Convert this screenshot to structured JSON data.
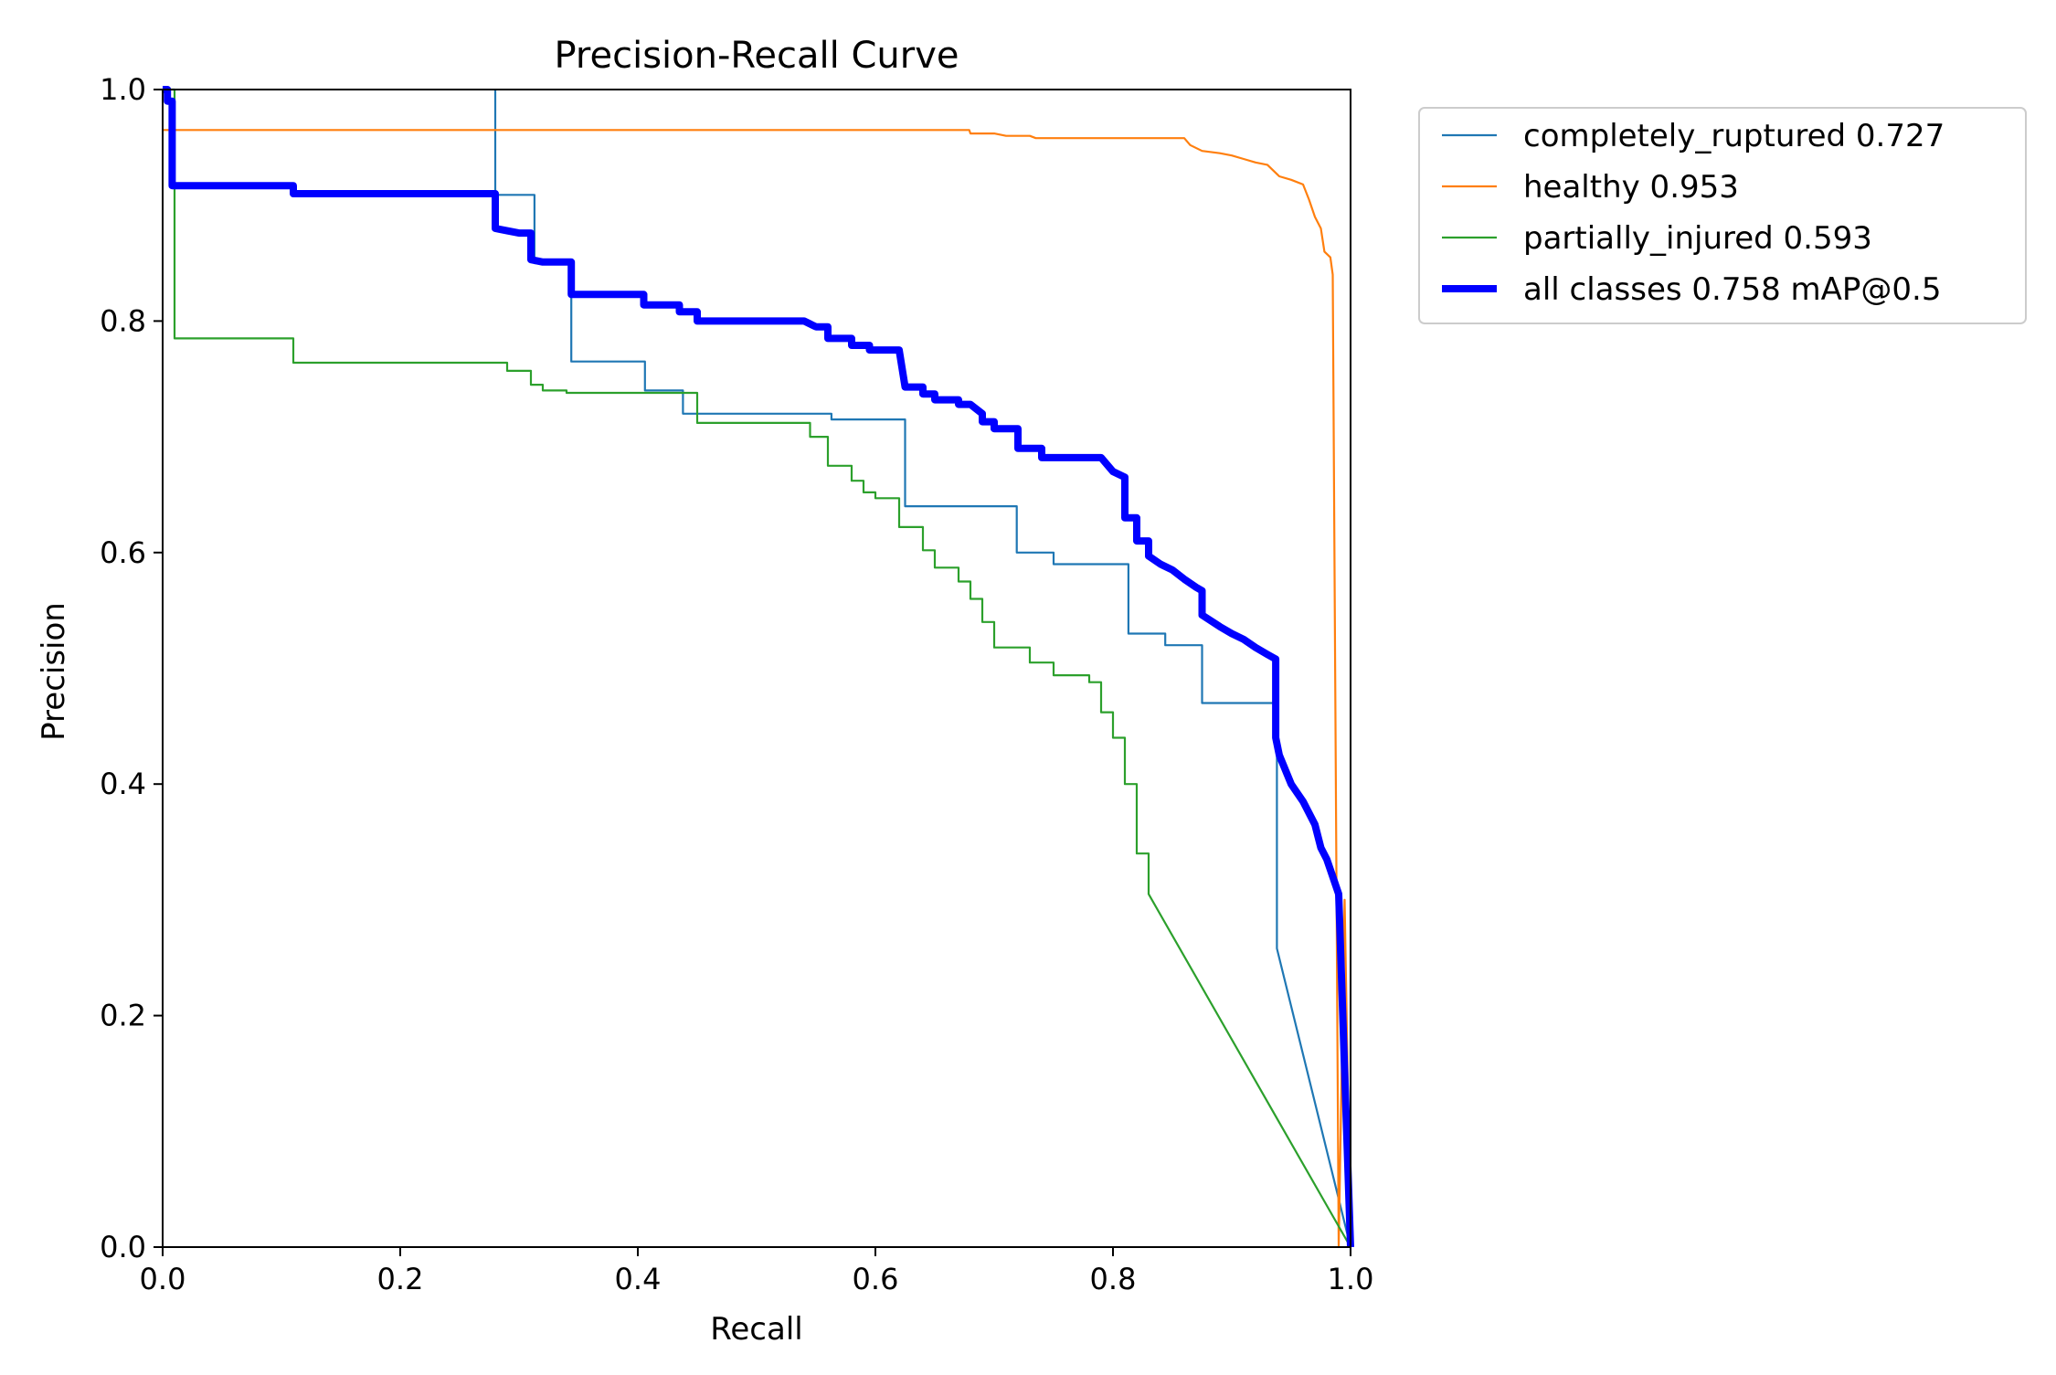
{
  "chart_data": {
    "type": "line",
    "title": "Precision-Recall Curve",
    "xlabel": "Recall",
    "ylabel": "Precision",
    "xlim": [
      0,
      1
    ],
    "ylim": [
      0,
      1
    ],
    "xticks": [
      "0.0",
      "0.2",
      "0.4",
      "0.6",
      "0.8",
      "1.0"
    ],
    "yticks": [
      "0.0",
      "0.2",
      "0.4",
      "0.6",
      "0.8",
      "1.0"
    ],
    "grid": false,
    "legend_position": "outside-top-right",
    "series": [
      {
        "name": "completely_ruptured 0.727",
        "color": "#1f77b4",
        "width": "thin",
        "points": [
          [
            0.28,
            1.0
          ],
          [
            0.28,
            0.909
          ],
          [
            0.313,
            0.909
          ],
          [
            0.313,
            0.85
          ],
          [
            0.344,
            0.85
          ],
          [
            0.344,
            0.765
          ],
          [
            0.406,
            0.765
          ],
          [
            0.406,
            0.74
          ],
          [
            0.438,
            0.74
          ],
          [
            0.438,
            0.72
          ],
          [
            0.563,
            0.72
          ],
          [
            0.563,
            0.715
          ],
          [
            0.625,
            0.715
          ],
          [
            0.625,
            0.64
          ],
          [
            0.719,
            0.64
          ],
          [
            0.719,
            0.6
          ],
          [
            0.75,
            0.6
          ],
          [
            0.75,
            0.59
          ],
          [
            0.813,
            0.59
          ],
          [
            0.813,
            0.53
          ],
          [
            0.844,
            0.53
          ],
          [
            0.844,
            0.52
          ],
          [
            0.875,
            0.52
          ],
          [
            0.875,
            0.47
          ],
          [
            0.938,
            0.47
          ],
          [
            0.938,
            0.258
          ],
          [
            1.0,
            0.0
          ]
        ]
      },
      {
        "name": "healthy 0.953",
        "color": "#ff7f0e",
        "width": "thin",
        "points": [
          [
            0.0,
            0.965
          ],
          [
            0.679,
            0.965
          ],
          [
            0.68,
            0.962
          ],
          [
            0.7,
            0.962
          ],
          [
            0.71,
            0.96
          ],
          [
            0.73,
            0.96
          ],
          [
            0.735,
            0.958
          ],
          [
            0.86,
            0.958
          ],
          [
            0.865,
            0.952
          ],
          [
            0.875,
            0.947
          ],
          [
            0.89,
            0.945
          ],
          [
            0.9,
            0.943
          ],
          [
            0.91,
            0.94
          ],
          [
            0.92,
            0.937
          ],
          [
            0.93,
            0.935
          ],
          [
            0.94,
            0.925
          ],
          [
            0.95,
            0.922
          ],
          [
            0.96,
            0.918
          ],
          [
            0.965,
            0.905
          ],
          [
            0.97,
            0.89
          ],
          [
            0.975,
            0.88
          ],
          [
            0.978,
            0.86
          ],
          [
            0.983,
            0.855
          ],
          [
            0.985,
            0.84
          ],
          [
            0.99,
            0.0
          ],
          [
            0.995,
            0.3
          ],
          [
            1.0,
            0.0
          ]
        ]
      },
      {
        "name": "partially_injured 0.593",
        "color": "#2ca02c",
        "width": "thin",
        "points": [
          [
            0.0,
            1.0
          ],
          [
            0.01,
            1.0
          ],
          [
            0.01,
            0.785
          ],
          [
            0.11,
            0.785
          ],
          [
            0.11,
            0.764
          ],
          [
            0.29,
            0.764
          ],
          [
            0.29,
            0.757
          ],
          [
            0.31,
            0.757
          ],
          [
            0.31,
            0.745
          ],
          [
            0.32,
            0.745
          ],
          [
            0.32,
            0.74
          ],
          [
            0.34,
            0.74
          ],
          [
            0.34,
            0.738
          ],
          [
            0.45,
            0.738
          ],
          [
            0.45,
            0.712
          ],
          [
            0.545,
            0.712
          ],
          [
            0.545,
            0.7
          ],
          [
            0.56,
            0.7
          ],
          [
            0.56,
            0.675
          ],
          [
            0.58,
            0.675
          ],
          [
            0.58,
            0.662
          ],
          [
            0.59,
            0.662
          ],
          [
            0.59,
            0.652
          ],
          [
            0.6,
            0.652
          ],
          [
            0.6,
            0.647
          ],
          [
            0.62,
            0.647
          ],
          [
            0.62,
            0.622
          ],
          [
            0.64,
            0.622
          ],
          [
            0.64,
            0.602
          ],
          [
            0.65,
            0.602
          ],
          [
            0.65,
            0.587
          ],
          [
            0.67,
            0.587
          ],
          [
            0.67,
            0.575
          ],
          [
            0.68,
            0.575
          ],
          [
            0.68,
            0.56
          ],
          [
            0.69,
            0.56
          ],
          [
            0.69,
            0.54
          ],
          [
            0.7,
            0.54
          ],
          [
            0.7,
            0.518
          ],
          [
            0.73,
            0.518
          ],
          [
            0.73,
            0.505
          ],
          [
            0.75,
            0.505
          ],
          [
            0.75,
            0.494
          ],
          [
            0.78,
            0.494
          ],
          [
            0.78,
            0.488
          ],
          [
            0.79,
            0.488
          ],
          [
            0.79,
            0.462
          ],
          [
            0.8,
            0.462
          ],
          [
            0.8,
            0.44
          ],
          [
            0.81,
            0.44
          ],
          [
            0.81,
            0.4
          ],
          [
            0.82,
            0.4
          ],
          [
            0.82,
            0.34
          ],
          [
            0.83,
            0.34
          ],
          [
            0.83,
            0.305
          ],
          [
            1.0,
            0.0
          ]
        ]
      },
      {
        "name": "all classes 0.758 mAP@0.5",
        "color": "#0000ff",
        "width": "thick",
        "points": [
          [
            0.0,
            1.0
          ],
          [
            0.004,
            1.0
          ],
          [
            0.004,
            0.99
          ],
          [
            0.008,
            0.99
          ],
          [
            0.008,
            0.917
          ],
          [
            0.11,
            0.917
          ],
          [
            0.11,
            0.91
          ],
          [
            0.28,
            0.91
          ],
          [
            0.28,
            0.88
          ],
          [
            0.29,
            0.878
          ],
          [
            0.3,
            0.876
          ],
          [
            0.31,
            0.876
          ],
          [
            0.31,
            0.853
          ],
          [
            0.32,
            0.851
          ],
          [
            0.344,
            0.851
          ],
          [
            0.344,
            0.823
          ],
          [
            0.405,
            0.823
          ],
          [
            0.405,
            0.814
          ],
          [
            0.435,
            0.814
          ],
          [
            0.435,
            0.808
          ],
          [
            0.45,
            0.808
          ],
          [
            0.45,
            0.8
          ],
          [
            0.54,
            0.8
          ],
          [
            0.55,
            0.795
          ],
          [
            0.56,
            0.795
          ],
          [
            0.56,
            0.785
          ],
          [
            0.58,
            0.785
          ],
          [
            0.58,
            0.779
          ],
          [
            0.595,
            0.779
          ],
          [
            0.595,
            0.775
          ],
          [
            0.62,
            0.775
          ],
          [
            0.625,
            0.743
          ],
          [
            0.64,
            0.743
          ],
          [
            0.64,
            0.737
          ],
          [
            0.65,
            0.737
          ],
          [
            0.65,
            0.732
          ],
          [
            0.67,
            0.732
          ],
          [
            0.67,
            0.728
          ],
          [
            0.68,
            0.728
          ],
          [
            0.69,
            0.72
          ],
          [
            0.69,
            0.713
          ],
          [
            0.7,
            0.713
          ],
          [
            0.7,
            0.707
          ],
          [
            0.72,
            0.707
          ],
          [
            0.72,
            0.69
          ],
          [
            0.74,
            0.69
          ],
          [
            0.74,
            0.682
          ],
          [
            0.79,
            0.682
          ],
          [
            0.8,
            0.67
          ],
          [
            0.81,
            0.665
          ],
          [
            0.81,
            0.63
          ],
          [
            0.82,
            0.63
          ],
          [
            0.82,
            0.61
          ],
          [
            0.83,
            0.61
          ],
          [
            0.83,
            0.597
          ],
          [
            0.84,
            0.59
          ],
          [
            0.85,
            0.585
          ],
          [
            0.86,
            0.577
          ],
          [
            0.87,
            0.57
          ],
          [
            0.875,
            0.567
          ],
          [
            0.875,
            0.546
          ],
          [
            0.89,
            0.536
          ],
          [
            0.9,
            0.53
          ],
          [
            0.91,
            0.525
          ],
          [
            0.92,
            0.518
          ],
          [
            0.93,
            0.512
          ],
          [
            0.937,
            0.508
          ],
          [
            0.937,
            0.44
          ],
          [
            0.94,
            0.425
          ],
          [
            0.95,
            0.4
          ],
          [
            0.96,
            0.385
          ],
          [
            0.97,
            0.365
          ],
          [
            0.975,
            0.345
          ],
          [
            0.98,
            0.335
          ],
          [
            0.985,
            0.32
          ],
          [
            0.99,
            0.305
          ],
          [
            1.0,
            0.0
          ]
        ]
      }
    ]
  }
}
